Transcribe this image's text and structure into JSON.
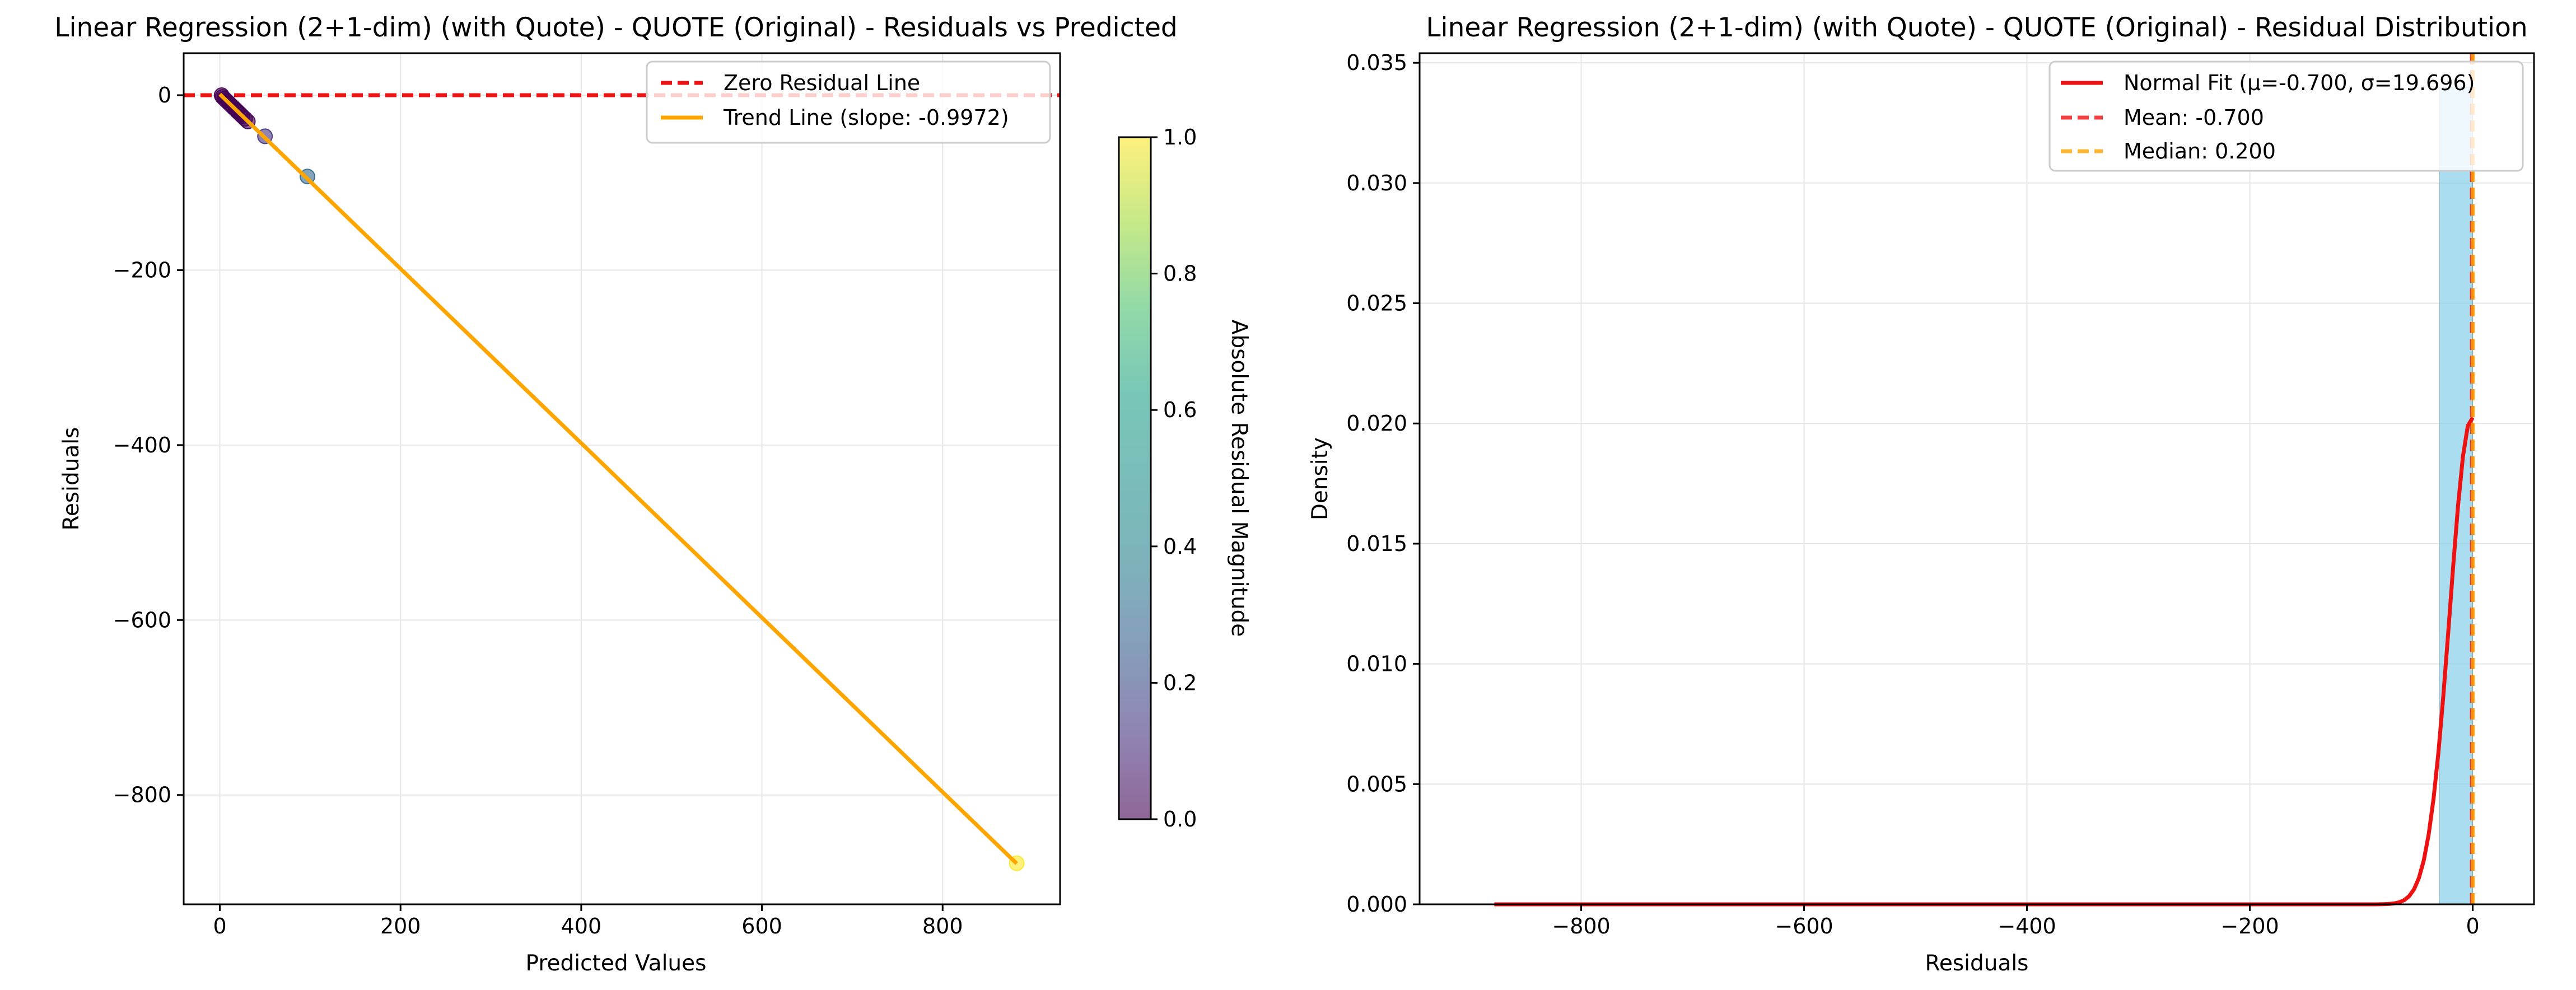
{
  "chart_data": [
    {
      "type": "scatter",
      "title": "Linear Regression (2+1-dim) (with Quote) - QUOTE (Original) - Residuals vs Predicted",
      "xlabel": "Predicted Values",
      "ylabel": "Residuals",
      "xlim": [
        -40,
        930
      ],
      "ylim": [
        -925,
        48
      ],
      "xticks": [
        0,
        200,
        400,
        600,
        800
      ],
      "xtick_labels": [
        "0",
        "200",
        "400",
        "600",
        "800"
      ],
      "yticks": [
        0,
        -200,
        -400,
        -600,
        -800
      ],
      "ytick_labels": [
        "0",
        "−200",
        "−400",
        "−600",
        "−800"
      ],
      "grid": true,
      "legend_position": "upper right",
      "points": [
        {
          "x": 2,
          "y": 0
        },
        {
          "x": 3,
          "y": -2
        },
        {
          "x": 5,
          "y": -4
        },
        {
          "x": 7,
          "y": -6
        },
        {
          "x": 9,
          "y": -8
        },
        {
          "x": 11,
          "y": -10
        },
        {
          "x": 13,
          "y": -12
        },
        {
          "x": 15,
          "y": -14
        },
        {
          "x": 17,
          "y": -16
        },
        {
          "x": 19,
          "y": -18
        },
        {
          "x": 21,
          "y": -20
        },
        {
          "x": 23,
          "y": -22
        },
        {
          "x": 25,
          "y": -24
        },
        {
          "x": 28,
          "y": -27
        },
        {
          "x": 31,
          "y": -30
        },
        {
          "x": 50,
          "y": -47
        },
        {
          "x": 97,
          "y": -93
        },
        {
          "x": 882,
          "y": -878
        }
      ],
      "series": [
        {
          "name": "Zero Residual Line",
          "style": "dashed",
          "color": "#ee1111",
          "y": 0
        },
        {
          "name": "Trend Line (slope: -0.9972)",
          "style": "solid",
          "color": "#ffa500",
          "slope": -0.9972,
          "intercept": 1.1,
          "x_range": [
            0,
            882
          ]
        }
      ],
      "colorbar": {
        "label": "Absolute Residual Magnitude",
        "range": [
          0.0,
          1.0
        ],
        "ticks": [
          "0.0",
          "0.2",
          "0.4",
          "0.6",
          "0.8",
          "1.0"
        ],
        "colormap": "viridis"
      }
    },
    {
      "type": "bar",
      "title": "Linear Regression (2+1-dim) (with Quote) - QUOTE (Original) - Residual Distribution",
      "xlabel": "Residuals",
      "ylabel": "Density",
      "xlim": [
        -945,
        55
      ],
      "ylim": [
        0,
        0.0354
      ],
      "xticks": [
        -800,
        -600,
        -400,
        -200,
        0
      ],
      "xtick_labels": [
        "−800",
        "−600",
        "−400",
        "−200",
        "0"
      ],
      "yticks": [
        0,
        0.005,
        0.01,
        0.015,
        0.02,
        0.025,
        0.03,
        0.035
      ],
      "ytick_labels": [
        "0.000",
        "0.005",
        "0.010",
        "0.015",
        "0.020",
        "0.025",
        "0.030",
        "0.035"
      ],
      "grid": true,
      "legend_position": "upper right",
      "histogram": [
        {
          "x0": -30,
          "x1": 0,
          "density": 0.034
        }
      ],
      "series": [
        {
          "name": "Normal Fit (μ=-0.700, σ=19.696)",
          "style": "solid",
          "color": "#ee1111",
          "mu": -0.7,
          "sigma": 19.696,
          "x_range": [
            -878,
            0
          ]
        },
        {
          "name": "Mean: -0.700",
          "style": "dashed",
          "color": "#ee1111",
          "x": -0.7
        },
        {
          "name": "Median: 0.200",
          "style": "dashed",
          "color": "#ffa500",
          "x": 0.2
        }
      ]
    }
  ]
}
